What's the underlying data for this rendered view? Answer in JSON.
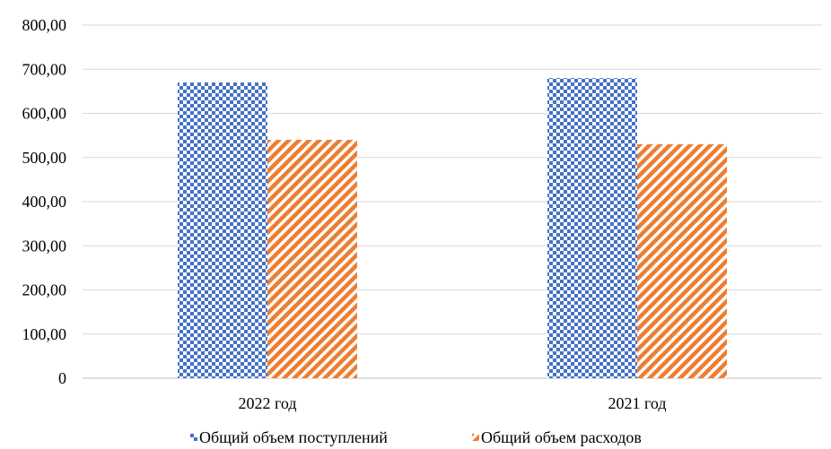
{
  "chart_data": {
    "type": "bar",
    "categories": [
      "2022 год",
      "2021 год"
    ],
    "series": [
      {
        "name": "Общий объем поступлений",
        "values": [
          670,
          680
        ],
        "color": "#4472C4",
        "pattern": "checkerboard"
      },
      {
        "name": "Общий объем расходов",
        "values": [
          540,
          530
        ],
        "color": "#ED7D31",
        "pattern": "diagonal-stripes"
      }
    ],
    "ylim": [
      0,
      800
    ],
    "yticks": [
      0,
      100,
      200,
      300,
      400,
      500,
      600,
      700,
      800
    ],
    "ytick_labels": [
      "0",
      "100,00",
      "200,00",
      "300,00",
      "400,00",
      "500,00",
      "600,00",
      "700,00",
      "800,00"
    ],
    "grid": true,
    "legend": "bottom"
  }
}
